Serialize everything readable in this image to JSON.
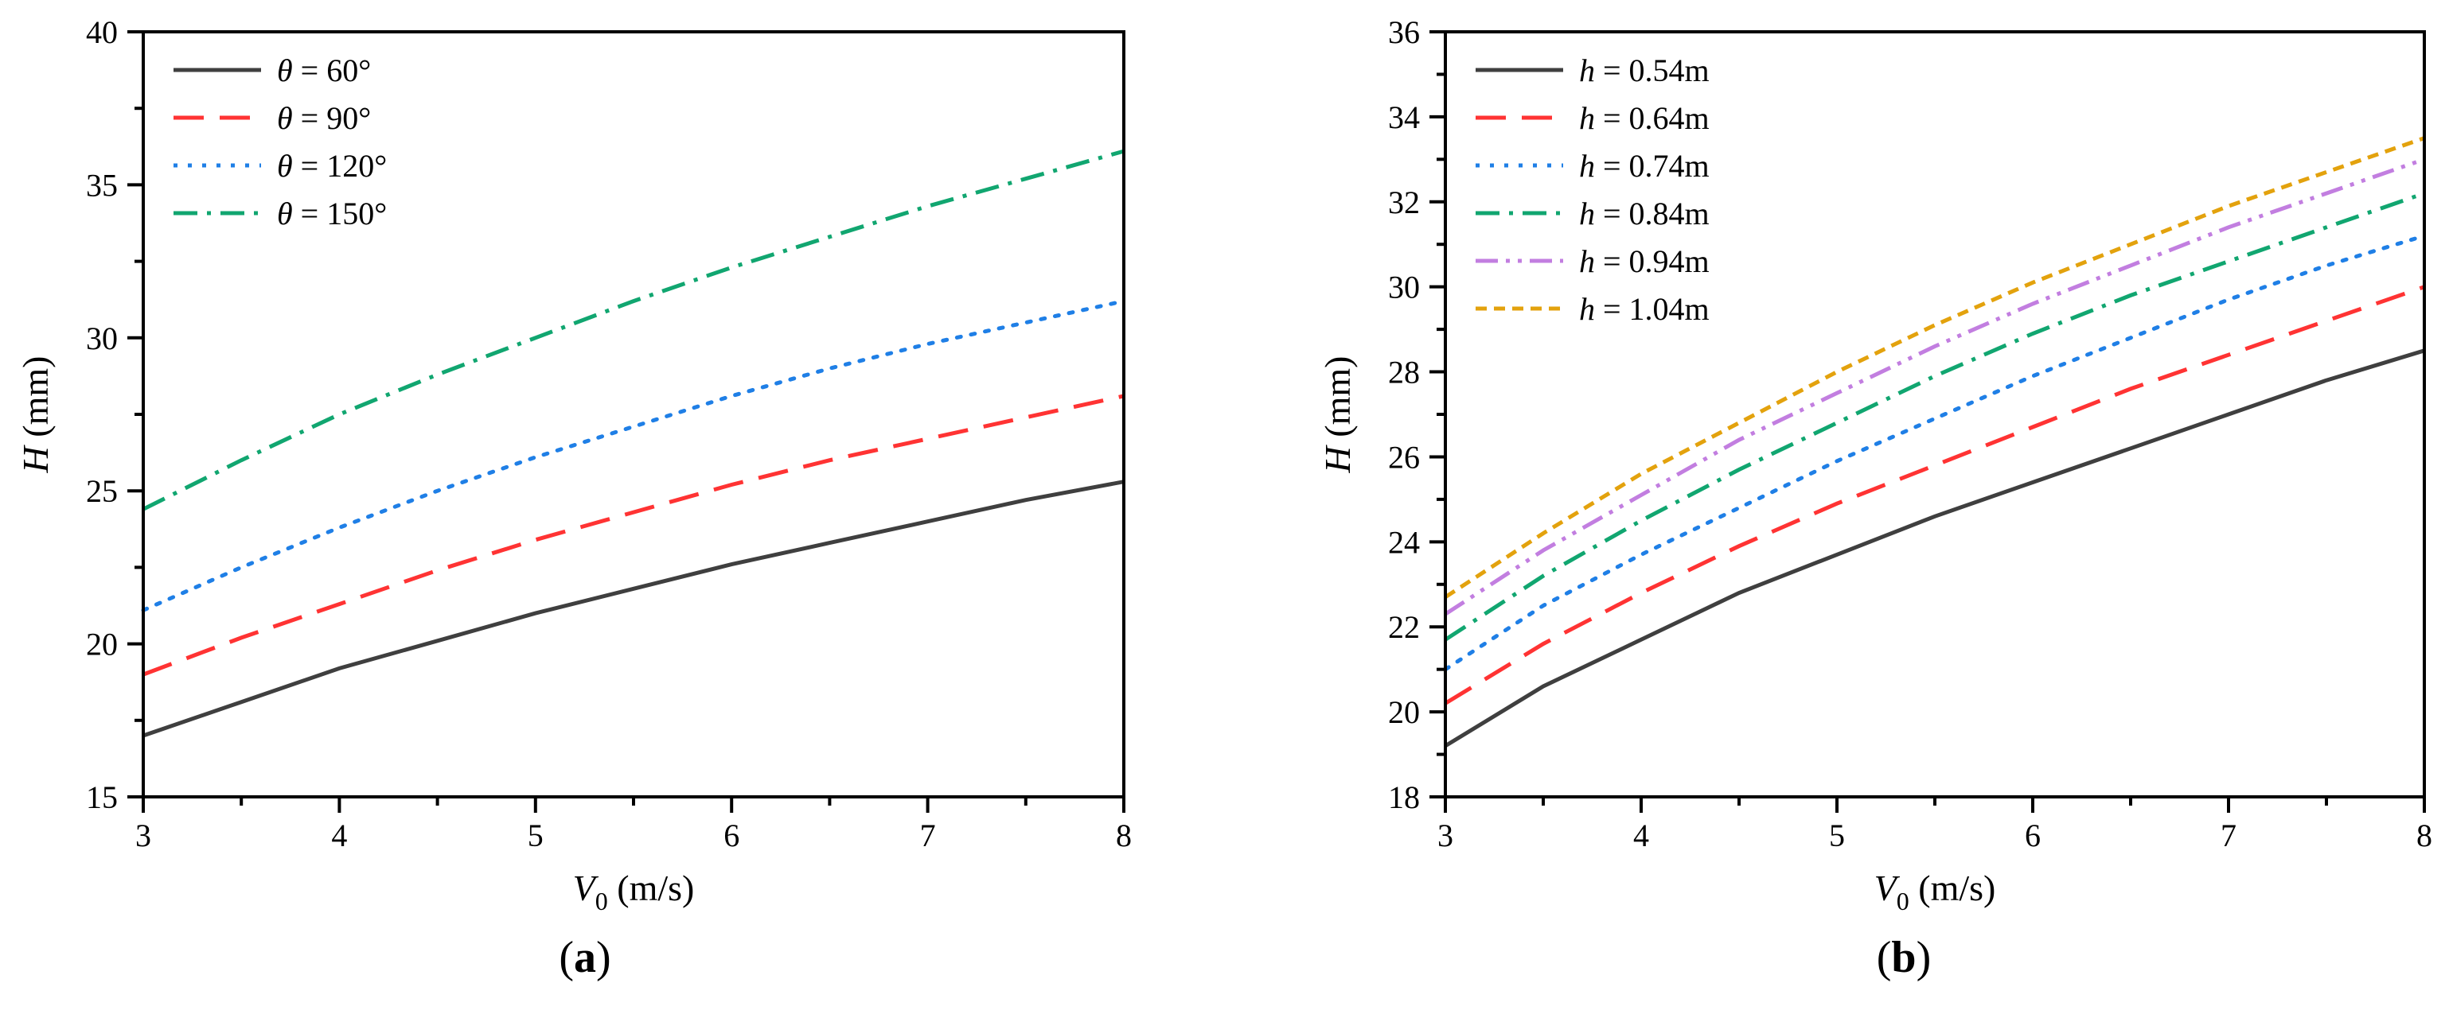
{
  "chart_data": [
    {
      "type": "line",
      "panel_label": "(a)",
      "x": [
        3,
        3.5,
        4,
        4.5,
        5,
        5.5,
        6,
        6.5,
        7,
        7.5,
        8
      ],
      "xlim": [
        3,
        8
      ],
      "ylim": [
        15,
        40
      ],
      "xticks": [
        "3",
        "4",
        "5",
        "6",
        "7",
        "8"
      ],
      "yticks": [
        "15",
        "20",
        "25",
        "30",
        "35",
        "40"
      ],
      "xlabel": {
        "var": "V",
        "sub": "0",
        "unit": " (m/s)"
      },
      "ylabel": {
        "var": "H",
        "unit": " (mm)"
      },
      "legend_loc": "top-left",
      "grid": false,
      "series": [
        {
          "name": "θ = 60°",
          "sym": "θ",
          "rest": " = 60°",
          "color": "#3f3f3f",
          "dash": "solid",
          "values": [
            17.0,
            18.1,
            19.2,
            20.1,
            21.0,
            21.8,
            22.6,
            23.3,
            24.0,
            24.7,
            25.3
          ]
        },
        {
          "name": "θ = 90°",
          "sym": "θ",
          "rest": " = 90°",
          "color": "#ff3333",
          "dash": "dash",
          "values": [
            19.0,
            20.2,
            21.3,
            22.4,
            23.4,
            24.3,
            25.2,
            26.0,
            26.7,
            27.4,
            28.1
          ]
        },
        {
          "name": "θ = 120°",
          "sym": "θ",
          "rest": " = 120°",
          "color": "#1f7fe6",
          "dash": "dot",
          "values": [
            21.1,
            22.5,
            23.8,
            25.0,
            26.1,
            27.1,
            28.1,
            29.0,
            29.8,
            30.5,
            31.2
          ]
        },
        {
          "name": "θ = 150°",
          "sym": "θ",
          "rest": " = 150°",
          "color": "#11a670",
          "dash": "dashdot",
          "values": [
            24.4,
            26.0,
            27.5,
            28.8,
            30.0,
            31.2,
            32.3,
            33.3,
            34.3,
            35.2,
            36.1
          ]
        }
      ]
    },
    {
      "type": "line",
      "panel_label": "(b)",
      "x": [
        3,
        3.5,
        4,
        4.5,
        5,
        5.5,
        6,
        6.5,
        7,
        7.5,
        8
      ],
      "xlim": [
        3,
        8
      ],
      "ylim": [
        18,
        36
      ],
      "xticks": [
        "3",
        "4",
        "5",
        "6",
        "7",
        "8"
      ],
      "yticks": [
        "18",
        "20",
        "22",
        "24",
        "26",
        "28",
        "30",
        "32",
        "34",
        "36"
      ],
      "xlabel": {
        "var": "V",
        "sub": "0",
        "unit": " (m/s)"
      },
      "ylabel": {
        "var": "H",
        "unit": " (mm)"
      },
      "legend_loc": "top-left",
      "grid": false,
      "series": [
        {
          "name": "h = 0.54m",
          "sym": "h",
          "rest": " = 0.54m",
          "color": "#3f3f3f",
          "dash": "solid",
          "values": [
            19.2,
            20.6,
            21.7,
            22.8,
            23.7,
            24.6,
            25.4,
            26.2,
            27.0,
            27.8,
            28.5
          ]
        },
        {
          "name": "h = 0.64m",
          "sym": "h",
          "rest": " = 0.64m",
          "color": "#ff3333",
          "dash": "dash",
          "values": [
            20.2,
            21.6,
            22.8,
            23.9,
            24.9,
            25.8,
            26.7,
            27.6,
            28.4,
            29.2,
            30.0
          ]
        },
        {
          "name": "h = 0.74m",
          "sym": "h",
          "rest": " = 0.74m",
          "color": "#1f7fe6",
          "dash": "dot",
          "values": [
            21.0,
            22.5,
            23.7,
            24.8,
            25.9,
            26.9,
            27.9,
            28.8,
            29.7,
            30.5,
            31.2
          ]
        },
        {
          "name": "h = 0.84m",
          "sym": "h",
          "rest": " = 0.84m",
          "color": "#11a670",
          "dash": "dashdot",
          "values": [
            21.7,
            23.2,
            24.5,
            25.7,
            26.8,
            27.9,
            28.9,
            29.8,
            30.6,
            31.4,
            32.2
          ]
        },
        {
          "name": "h = 0.94m",
          "sym": "h",
          "rest": " = 0.94m",
          "color": "#c27ee0",
          "dash": "dashdotdot",
          "values": [
            22.3,
            23.8,
            25.1,
            26.4,
            27.5,
            28.6,
            29.6,
            30.5,
            31.4,
            32.2,
            33.0
          ]
        },
        {
          "name": "h = 1.04m",
          "sym": "h",
          "rest": " = 1.04m",
          "color": "#e3a20d",
          "dash": "shortdash",
          "values": [
            22.7,
            24.2,
            25.6,
            26.8,
            28.0,
            29.1,
            30.1,
            31.0,
            31.9,
            32.7,
            33.5
          ]
        }
      ]
    }
  ]
}
